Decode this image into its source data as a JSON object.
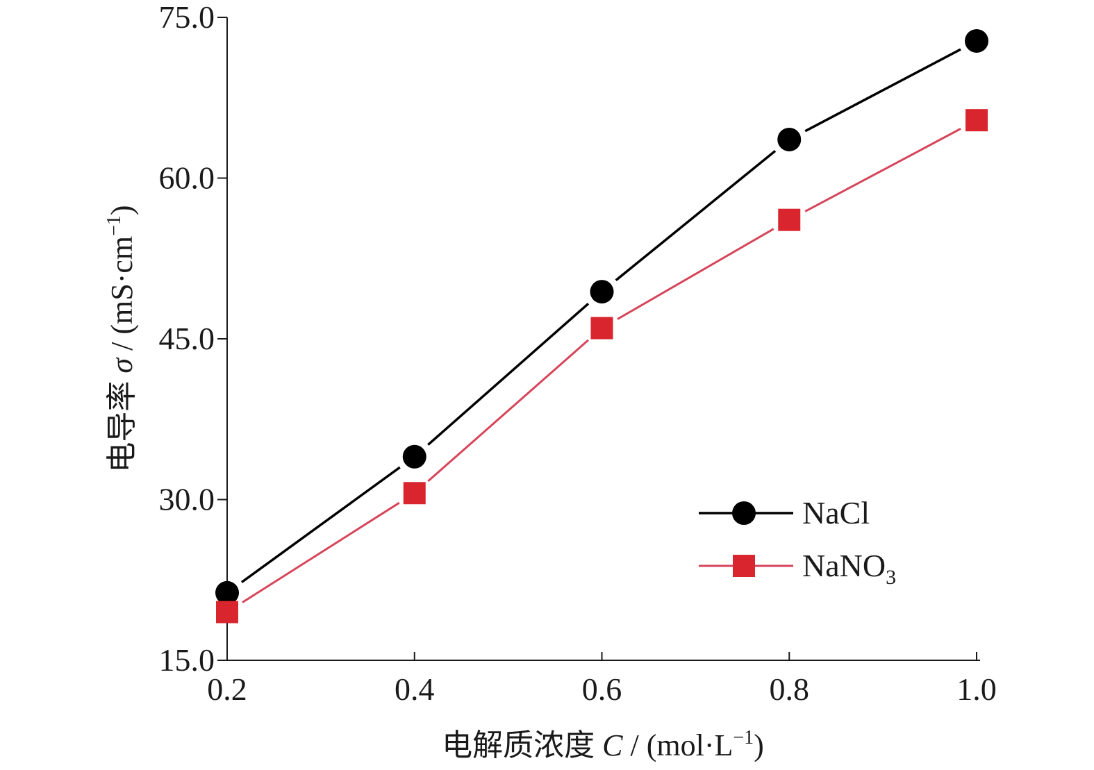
{
  "chart_data": {
    "type": "line",
    "x": [
      0.2,
      0.4,
      0.6,
      0.8,
      1.0
    ],
    "x_tick_labels": [
      "0.2",
      "0.4",
      "0.6",
      "0.8",
      "1.0"
    ],
    "y_tick_labels": [
      "15.0",
      "30.0",
      "45.0",
      "60.0",
      "75.0"
    ],
    "y_ticks": [
      15,
      30,
      45,
      60,
      75
    ],
    "xlim": [
      0.2,
      1.0
    ],
    "ylim": [
      15,
      75
    ],
    "xlabel": {
      "main": "电解质浓度 ",
      "symbol": "C",
      "unit": " / (mol·L",
      "sup": "−1",
      "close": ")"
    },
    "ylabel": {
      "main": "电导率 ",
      "symbol": "σ",
      "unit": " / (mS·cm",
      "sup": "−1",
      "close": ")"
    },
    "grid": false,
    "legend_position": "lower-right",
    "series": [
      {
        "name": "NaCl",
        "name_main": "NaCl",
        "name_sub": "",
        "marker": "circle",
        "line_color": "#000000",
        "marker_color": "#000000",
        "values": [
          21.3,
          34.0,
          49.4,
          63.6,
          72.8
        ]
      },
      {
        "name": "NaNO3",
        "name_main": "NaNO",
        "name_sub": "3",
        "marker": "square",
        "line_color": "#d6455a",
        "marker_color": "#d9262e",
        "values": [
          19.5,
          30.6,
          46.0,
          56.1,
          65.4
        ]
      }
    ]
  }
}
